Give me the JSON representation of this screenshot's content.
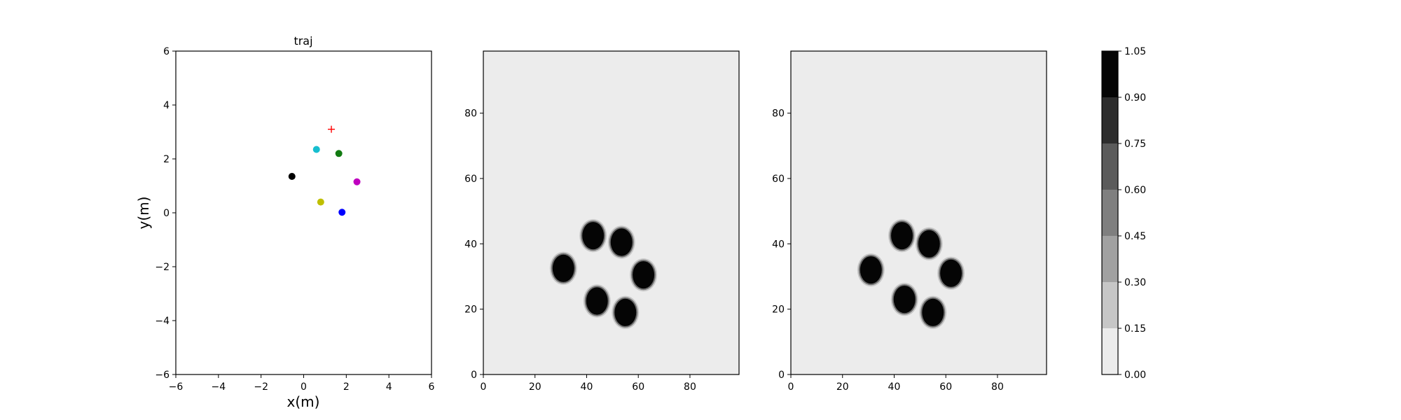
{
  "chart_data": [
    {
      "type": "scatter",
      "title": "traj",
      "xlabel": "x(m)",
      "ylabel": "y(m)",
      "xlim": [
        -6,
        6
      ],
      "ylim": [
        -6,
        6
      ],
      "xticks": [
        "−6",
        "−4",
        "−2",
        "0",
        "2",
        "4",
        "6"
      ],
      "yticks": [
        "−6",
        "−4",
        "−2",
        "0",
        "2",
        "4",
        "6"
      ],
      "grid": false,
      "points": [
        {
          "x": 0.6,
          "y": 2.35,
          "color": "#17becf",
          "marker": "circle"
        },
        {
          "x": 1.65,
          "y": 2.2,
          "color": "#117a11",
          "marker": "circle"
        },
        {
          "x": -0.55,
          "y": 1.35,
          "color": "#000000",
          "marker": "circle"
        },
        {
          "x": 2.5,
          "y": 1.15,
          "color": "#bf00bf",
          "marker": "circle"
        },
        {
          "x": 0.8,
          "y": 0.4,
          "color": "#bfbf00",
          "marker": "circle"
        },
        {
          "x": 1.8,
          "y": 0.02,
          "color": "#0000ff",
          "marker": "circle"
        },
        {
          "x": 1.3,
          "y": 3.1,
          "color": "#ff0000",
          "marker": "plus"
        }
      ]
    },
    {
      "type": "heatmap",
      "xlim": [
        0,
        99
      ],
      "ylim": [
        0,
        99
      ],
      "xticks": [
        "0",
        "20",
        "40",
        "60",
        "80"
      ],
      "yticks": [
        "0",
        "20",
        "40",
        "60",
        "80"
      ],
      "background_value": 0.05,
      "blobs": [
        {
          "x": 42.5,
          "y": 42.5,
          "value": 1.0
        },
        {
          "x": 53.5,
          "y": 40.5,
          "value": 1.0
        },
        {
          "x": 31,
          "y": 32.5,
          "value": 1.0
        },
        {
          "x": 62,
          "y": 30.5,
          "value": 1.0
        },
        {
          "x": 44,
          "y": 22.5,
          "value": 1.0
        },
        {
          "x": 55,
          "y": 19,
          "value": 1.0
        }
      ]
    },
    {
      "type": "heatmap",
      "xlim": [
        0,
        99
      ],
      "ylim": [
        0,
        99
      ],
      "xticks": [
        "0",
        "20",
        "40",
        "60",
        "80"
      ],
      "yticks": [
        "0",
        "20",
        "40",
        "60",
        "80"
      ],
      "background_value": 0.05,
      "blobs": [
        {
          "x": 43,
          "y": 42.5,
          "value": 1.0
        },
        {
          "x": 53.5,
          "y": 40,
          "value": 1.0
        },
        {
          "x": 31,
          "y": 32,
          "value": 1.0
        },
        {
          "x": 62,
          "y": 31,
          "value": 1.0
        },
        {
          "x": 44,
          "y": 23,
          "value": 1.0
        },
        {
          "x": 55,
          "y": 19,
          "value": 1.0
        }
      ]
    }
  ],
  "colorbar": {
    "min": 0,
    "max": 1.05,
    "ticks": [
      "0.00",
      "0.15",
      "0.30",
      "0.45",
      "0.60",
      "0.75",
      "0.90",
      "1.05"
    ],
    "level_colors": [
      "#ececec",
      "#c6c6c6",
      "#a1a1a1",
      "#7f7f7f",
      "#5b5b5b",
      "#2d2d2d",
      "#050505"
    ]
  }
}
